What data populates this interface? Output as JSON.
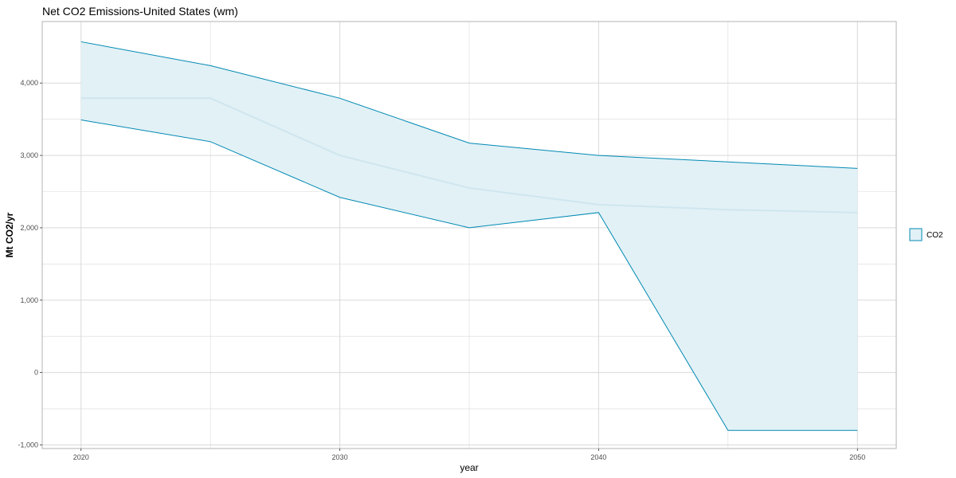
{
  "chart_data": {
    "type": "area",
    "title": "Net CO2 Emissions-United States (wm)",
    "xlabel": "year",
    "ylabel": "Mt CO2/yr",
    "x": [
      2020,
      2025,
      2030,
      2035,
      2040,
      2045,
      2050
    ],
    "xlim": [
      2018.5,
      2051.5
    ],
    "ylim": [
      -1050,
      4850
    ],
    "x_ticks": [
      2020,
      2030,
      2040,
      2050
    ],
    "x_tick_labels": [
      "2020",
      "2030",
      "2040",
      "2050"
    ],
    "y_ticks": [
      -1000,
      0,
      1000,
      2000,
      3000,
      4000
    ],
    "y_tick_labels": [
      "-1,000",
      "0",
      "1,000",
      "2,000",
      "3,000",
      "4,000"
    ],
    "grid": true,
    "series": [
      {
        "name": "CO2",
        "upper": [
          4570,
          4240,
          3790,
          3170,
          3000,
          2910,
          2820
        ],
        "lower": [
          3490,
          3190,
          2420,
          2000,
          2210,
          -800,
          -800
        ],
        "median": [
          3790,
          3790,
          3000,
          2550,
          2320,
          2250,
          2210
        ]
      }
    ],
    "legend": {
      "position": "right",
      "entries": [
        "CO2"
      ]
    },
    "colors": {
      "band_fill": "#e2f1f6",
      "band_line": "#0089b3",
      "median_line": "#cfe6ee",
      "grid": "#d9d9d9",
      "panel_border": "#b3b3b3"
    }
  }
}
